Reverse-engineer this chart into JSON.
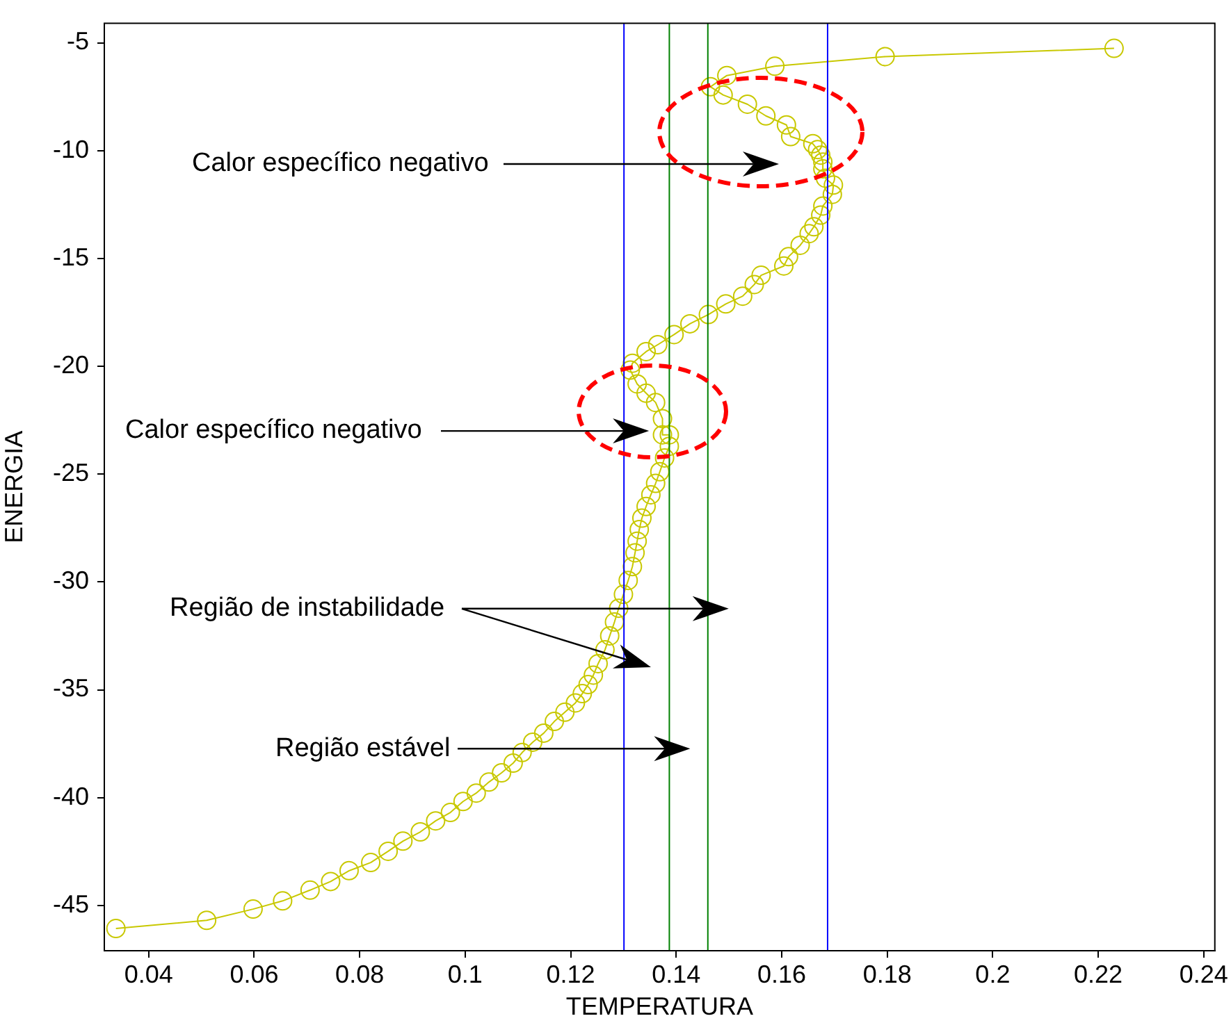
{
  "chart_data": {
    "type": "line",
    "xlabel": "TEMPERATURA",
    "ylabel": "ENERGIA",
    "x": [
      0.0338,
      0.051,
      0.0598,
      0.0654,
      0.0706,
      0.0745,
      0.078,
      0.0821,
      0.0854,
      0.0882,
      0.0915,
      0.0944,
      0.0972,
      0.0996,
      0.1021,
      0.1045,
      0.1069,
      0.1091,
      0.1108,
      0.1128,
      0.1149,
      0.1169,
      0.1189,
      0.1209,
      0.1222,
      0.1233,
      0.1243,
      0.1252,
      0.1265,
      0.1274,
      0.1283,
      0.1291,
      0.13,
      0.1309,
      0.1317,
      0.1322,
      0.1326,
      0.133,
      0.1335,
      0.1343,
      0.1352,
      0.1361,
      0.1369,
      0.1378,
      0.1387,
      0.1387,
      0.1374,
      0.1374,
      0.1361,
      0.1343,
      0.1326,
      0.1313,
      0.1317,
      0.1343,
      0.1365,
      0.1396,
      0.1426,
      0.1461,
      0.1494,
      0.1526,
      0.1548,
      0.1561,
      0.1604,
      0.1613,
      0.1635,
      0.1652,
      0.1661,
      0.1674,
      0.1678,
      0.1696,
      0.1698,
      0.1683,
      0.1678,
      0.1678,
      0.1674,
      0.1668,
      0.1659,
      0.1617,
      0.1609,
      0.157,
      0.1535,
      0.1489,
      0.1465,
      0.1496,
      0.1587,
      0.1796,
      0.223
    ],
    "series": [
      {
        "color": "#c8c800",
        "values": [
          -46.07,
          -45.69,
          -45.17,
          -44.79,
          -44.29,
          -43.89,
          -43.39,
          -43.01,
          -42.49,
          -42.02,
          -41.59,
          -41.08,
          -40.69,
          -40.18,
          -39.79,
          -39.28,
          -38.85,
          -38.4,
          -37.91,
          -37.43,
          -37.01,
          -36.47,
          -36.04,
          -35.61,
          -35.18,
          -34.76,
          -34.32,
          -33.79,
          -33.15,
          -32.5,
          -31.86,
          -31.22,
          -30.58,
          -29.93,
          -29.29,
          -28.65,
          -28.11,
          -27.57,
          -27.04,
          -26.5,
          -25.96,
          -25.43,
          -24.89,
          -24.25,
          -23.71,
          -23.18,
          -23.18,
          -22.43,
          -21.68,
          -21.25,
          -20.82,
          -20.18,
          -19.86,
          -19.32,
          -19.0,
          -18.53,
          -18.03,
          -17.6,
          -17.11,
          -16.75,
          -16.21,
          -15.78,
          -15.35,
          -14.92,
          -14.39,
          -13.85,
          -13.53,
          -12.99,
          -12.57,
          -12.03,
          -11.6,
          -11.28,
          -10.85,
          -10.53,
          -10.21,
          -9.95,
          -9.68,
          -9.35,
          -8.81,
          -8.39,
          -7.85,
          -7.42,
          -7.04,
          -6.52,
          -6.09,
          -5.64,
          -5.26
        ]
      }
    ],
    "marker": "circle",
    "line_style": "solid",
    "grid": false,
    "legend": false,
    "xlim": [
      0.0316,
      0.2421
    ],
    "ylim": [
      -47.1,
      -4.1
    ],
    "xticks": [
      0.04,
      0.06,
      0.08,
      0.1,
      0.12,
      0.14,
      0.16,
      0.18,
      0.2,
      0.22,
      0.24
    ],
    "yticks": [
      -45,
      -40,
      -35,
      -30,
      -25,
      -20,
      -15,
      -10,
      -5
    ],
    "ref_lines": [
      {
        "axis": "x",
        "value": 0.1301,
        "color": "#0000ff"
      },
      {
        "axis": "x",
        "value": 0.1387,
        "color": "#008000"
      },
      {
        "axis": "x",
        "value": 0.146,
        "color": "#008000"
      },
      {
        "axis": "x",
        "value": 0.1687,
        "color": "#0000ff"
      }
    ],
    "annotations": [
      "Calor específico negativo",
      {
        "text": "Calor específico negativo",
        "x": 0.1301,
        "y": -23.0
      },
      {
        "text": "Região de instabilidade",
        "x": 0.146,
        "y": -31.24
      },
      {
        "text": "Região estável",
        "x": 0.1387,
        "y": -37.73
      }
    ]
  }
}
